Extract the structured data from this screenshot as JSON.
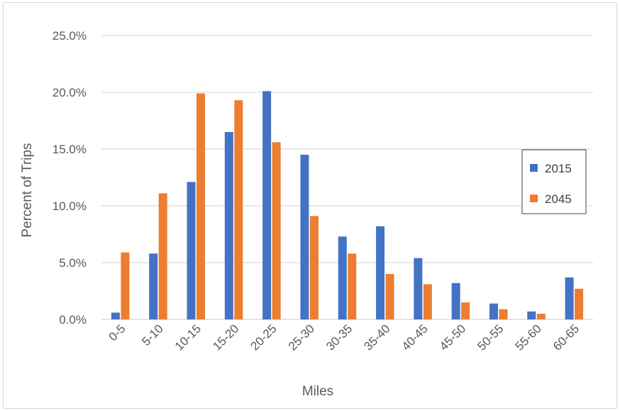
{
  "chart_data": {
    "type": "bar",
    "title": "",
    "xlabel": "Miles",
    "ylabel": "Percent of Trips",
    "categories": [
      "0-5",
      "5-10",
      "10-15",
      "15-20",
      "20-25",
      "25-30",
      "30-35",
      "35-40",
      "40-45",
      "45-50",
      "50-55",
      "55-60",
      "60-65"
    ],
    "series": [
      {
        "name": "2015",
        "color": "#4472c4",
        "values": [
          0.6,
          5.8,
          12.1,
          16.5,
          20.1,
          14.5,
          7.3,
          8.2,
          5.4,
          3.2,
          1.4,
          0.7,
          3.7
        ]
      },
      {
        "name": "2045",
        "color": "#ed7d31",
        "values": [
          5.9,
          11.1,
          19.9,
          19.3,
          15.6,
          9.1,
          5.8,
          4.0,
          3.1,
          1.5,
          0.9,
          0.5,
          2.7
        ]
      }
    ],
    "ylim": [
      0,
      25
    ],
    "yticks": [
      0,
      5,
      10,
      15,
      20,
      25
    ],
    "ytick_labels": [
      "0.0%",
      "5.0%",
      "10.0%",
      "15.0%",
      "20.0%",
      "25.0%"
    ],
    "grid": true,
    "legend_position": "right"
  }
}
